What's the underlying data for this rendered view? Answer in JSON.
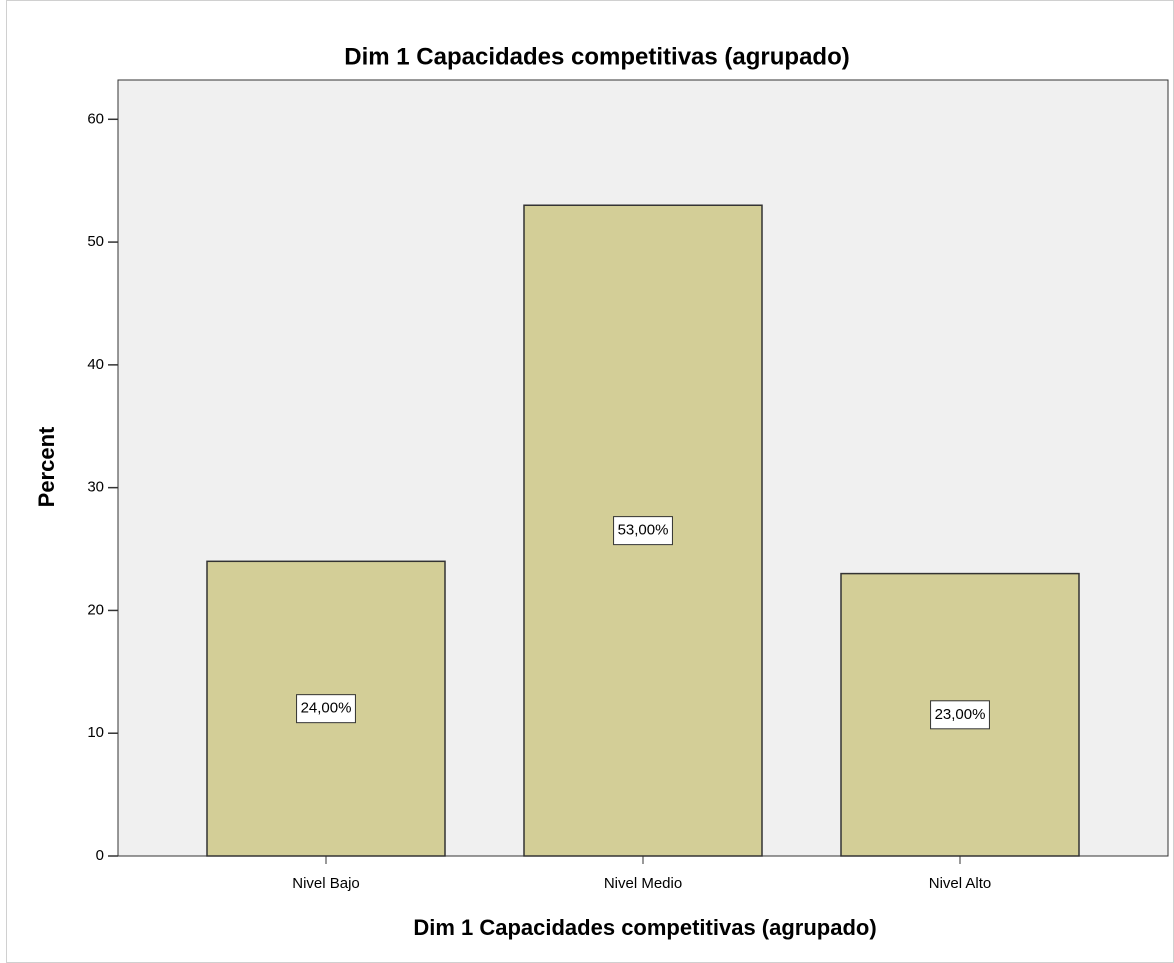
{
  "chart_data": {
    "type": "bar",
    "title": "Dim 1 Capacidades competitivas (agrupado)",
    "x_label": "Dim 1 Capacidades competitivas (agrupado)",
    "y_label": "Percent",
    "categories": [
      "Nivel Bajo",
      "Nivel Medio",
      "Nivel Alto"
    ],
    "values": [
      24,
      53,
      23
    ],
    "value_labels": [
      "24,00%",
      "53,00%",
      "23,00%"
    ],
    "color": "#d3ce97",
    "ylim": [
      0,
      63.2
    ],
    "yticks": [
      0,
      10,
      20,
      30,
      40,
      50,
      60
    ],
    "grid": false
  }
}
